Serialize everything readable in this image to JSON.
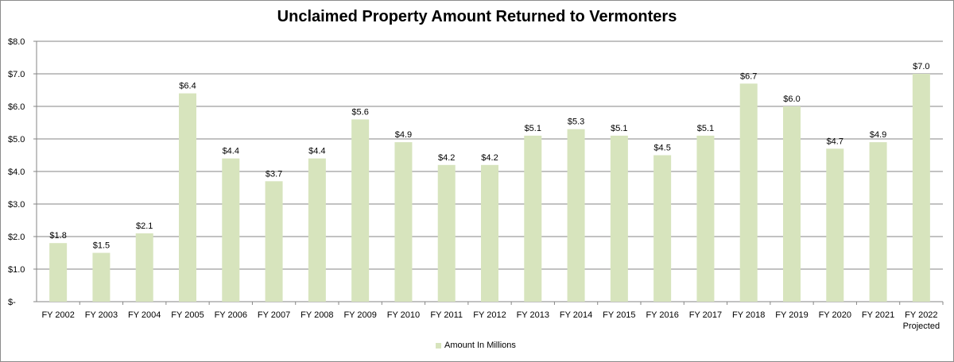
{
  "chart_data": {
    "type": "bar",
    "title": "Unclaimed Property Amount Returned to Vermonters",
    "categories": [
      "FY 2002",
      "FY 2003",
      "FY 2004",
      "FY 2005",
      "FY 2006",
      "FY 2007",
      "FY 2008",
      "FY 2009",
      "FY 2010",
      "FY 2011",
      "FY 2012",
      "FY 2013",
      "FY 2014",
      "FY 2015",
      "FY 2016",
      "FY 2017",
      "FY 2018",
      "FY 2019",
      "FY 2020",
      "FY 2021",
      "FY 2022\nProjected"
    ],
    "series": [
      {
        "name": "Amount  In Millions",
        "values": [
          1.8,
          1.5,
          2.1,
          6.4,
          4.4,
          3.7,
          4.4,
          5.6,
          4.9,
          4.2,
          4.2,
          5.1,
          5.3,
          5.1,
          4.5,
          5.1,
          6.7,
          6.0,
          4.7,
          4.9,
          7.0
        ],
        "data_labels": [
          "$1.8",
          "$1.5",
          "$2.1",
          "$6.4",
          "$4.4",
          "$3.7",
          "$4.4",
          "$5.6",
          "$4.9",
          "$4.2",
          "$4.2",
          "$5.1",
          "$5.3",
          "$5.1",
          "$4.5",
          "$5.1",
          "$6.7",
          "$6.0",
          "$4.7",
          "$4.9",
          "$7.0"
        ]
      }
    ],
    "ylim": [
      0,
      8
    ],
    "y_ticks": [
      0,
      1,
      2,
      3,
      4,
      5,
      6,
      7,
      8
    ],
    "y_tick_labels": [
      "$-",
      "$1.0",
      "$2.0",
      "$3.0",
      "$4.0",
      "$5.0",
      "$6.0",
      "$7.0",
      "$8.0"
    ],
    "grid": true,
    "legend_position": "bottom",
    "colors": {
      "bar": "#d7e4bd",
      "grid": "#868686",
      "axis": "#868686"
    }
  }
}
